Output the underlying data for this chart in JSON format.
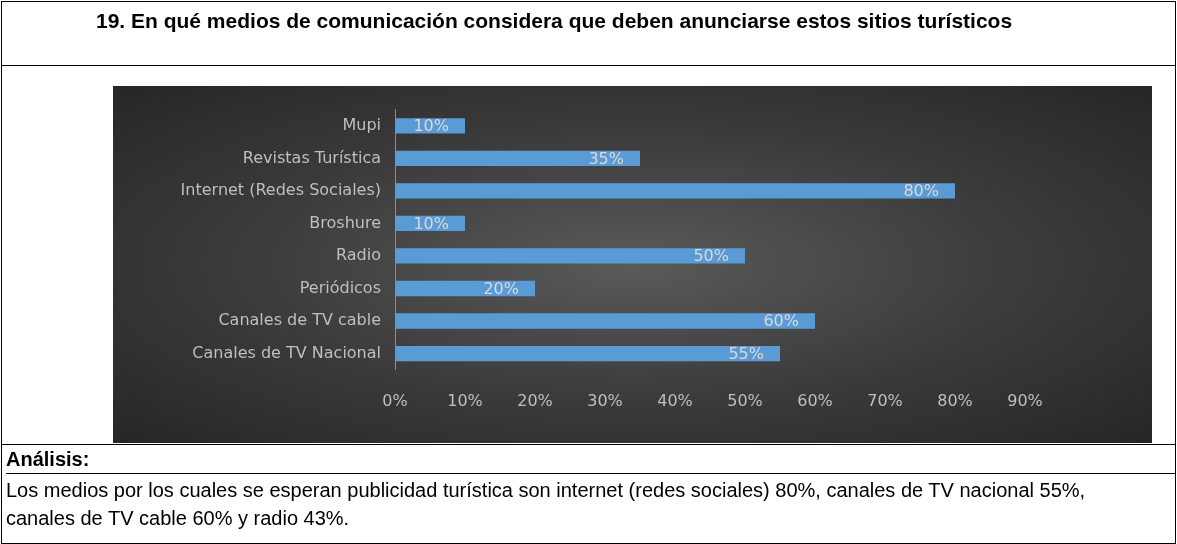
{
  "chart_data": {
    "type": "bar",
    "orientation": "horizontal",
    "title": "19. En qué medios de comunicación considera que deben anunciarse estos sitios turísticos",
    "categories": [
      "Mupi",
      "Revistas Turística",
      "Internet (Redes Sociales)",
      "Broshure",
      "Radio",
      "Periódicos",
      "Canales de TV cable",
      "Canales de TV Nacional"
    ],
    "values": [
      10,
      35,
      80,
      10,
      50,
      20,
      60,
      55
    ],
    "value_labels": [
      "10%",
      "35%",
      "80%",
      "10%",
      "50%",
      "20%",
      "60%",
      "55%"
    ],
    "color": "#5b9bd5",
    "xlim": [
      0,
      90
    ],
    "xticks": [
      {
        "value": 0,
        "label": "0%"
      },
      {
        "value": 10,
        "label": "10%"
      },
      {
        "value": 20,
        "label": "20%"
      },
      {
        "value": 30,
        "label": "30%"
      },
      {
        "value": 40,
        "label": "40%"
      },
      {
        "value": 50,
        "label": "50%"
      },
      {
        "value": 60,
        "label": "60%"
      },
      {
        "value": 70,
        "label": "70%"
      },
      {
        "value": 80,
        "label": "80%"
      },
      {
        "value": 90,
        "label": "90%"
      }
    ],
    "grid": false,
    "legend": false,
    "annotations": [
      "Análisis:",
      "Los medios por los cuales se esperan publicidad turística son internet (redes sociales) 80%, canales de TV nacional 55%, canales de TV cable 60% y radio 43%."
    ]
  }
}
